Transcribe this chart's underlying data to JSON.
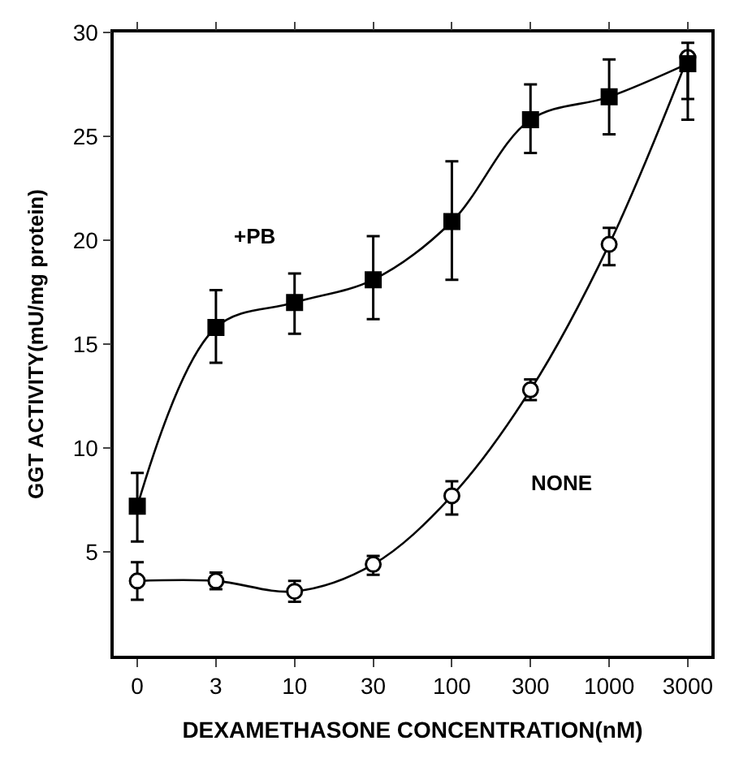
{
  "chart_data": {
    "type": "line",
    "xlabel": "DEXAMETHASONE CONCENTRATION(nM)",
    "ylabel": "GGT ACTIVITY(mU/mg protein)",
    "categories": [
      "0",
      "3",
      "10",
      "30",
      "100",
      "300",
      "1000",
      "3000"
    ],
    "series": [
      {
        "name": "+PB",
        "color": "#000000",
        "marker": "square",
        "values": [
          7.2,
          15.8,
          17.0,
          18.1,
          20.9,
          25.8,
          26.9,
          28.5
        ],
        "errors": [
          [
            5.5,
            8.8
          ],
          [
            14.1,
            17.6
          ],
          [
            15.5,
            18.4
          ],
          [
            16.2,
            20.2
          ],
          [
            18.1,
            23.8
          ],
          [
            24.2,
            27.5
          ],
          [
            25.1,
            28.7
          ],
          [
            25.8,
            29.5
          ]
        ]
      },
      {
        "name": "NONE",
        "color": "#000000",
        "marker": "circle",
        "values": [
          3.6,
          3.6,
          3.1,
          4.4,
          7.7,
          12.8,
          19.8,
          28.8
        ],
        "errors": [
          [
            2.7,
            4.5
          ],
          [
            3.2,
            4.0
          ],
          [
            2.6,
            3.6
          ],
          [
            3.9,
            4.8
          ],
          [
            6.8,
            8.4
          ],
          [
            12.3,
            13.3
          ],
          [
            18.8,
            20.6
          ],
          [
            26.8,
            29.0
          ]
        ]
      }
    ],
    "ylim": [
      0,
      30
    ],
    "yticks": [
      5,
      10,
      15,
      20,
      25,
      30
    ],
    "legend": false,
    "line_style": "solid"
  }
}
